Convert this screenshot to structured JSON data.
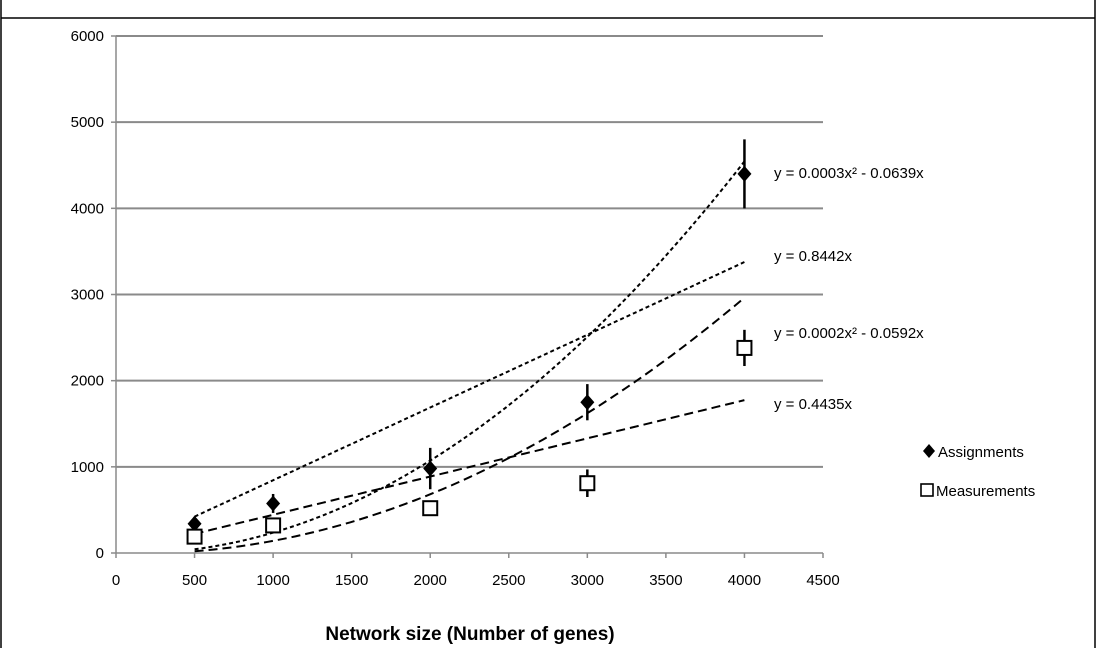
{
  "chart_data": {
    "type": "scatter",
    "title": "",
    "xlabel": "Network size (Number of genes)",
    "ylabel": "",
    "xlim": [
      0,
      4500
    ],
    "ylim": [
      0,
      6000
    ],
    "xticks": [
      0,
      500,
      1000,
      1500,
      2000,
      2500,
      3000,
      3500,
      4000,
      4500
    ],
    "yticks": [
      0,
      1000,
      2000,
      3000,
      4000,
      5000,
      6000
    ],
    "grid": "horizontal",
    "legend_position": "right",
    "series": [
      {
        "name": "Assignments",
        "marker": "filled-diamond",
        "x": [
          500,
          1000,
          2000,
          3000,
          4000
        ],
        "y": [
          340,
          575,
          980,
          1750,
          4400
        ],
        "error": [
          80,
          110,
          240,
          210,
          400
        ]
      },
      {
        "name": "Measurements",
        "marker": "open-square",
        "x": [
          500,
          1000,
          2000,
          3000,
          4000
        ],
        "y": [
          190,
          320,
          520,
          810,
          2380
        ],
        "error": [
          60,
          70,
          80,
          160,
          210
        ]
      }
    ],
    "trendlines": [
      {
        "label": "y = 0.0003x² - 0.0639x",
        "type": "poly2",
        "a": 0.0003,
        "b": -0.0639,
        "x_range": [
          500,
          4000
        ],
        "dash": "short"
      },
      {
        "label": "y = 0.8442x",
        "type": "linear",
        "a": 0.8442,
        "x_range": [
          500,
          4000
        ],
        "dash": "short"
      },
      {
        "label": "y = 0.0002x² - 0.0592x",
        "type": "poly2",
        "a": 0.0002,
        "b": -0.0592,
        "x_range": [
          500,
          4000
        ],
        "dash": "long"
      },
      {
        "label": "y = 0.4435x",
        "type": "linear",
        "a": 0.4435,
        "x_range": [
          500,
          4000
        ],
        "dash": "long"
      }
    ]
  }
}
